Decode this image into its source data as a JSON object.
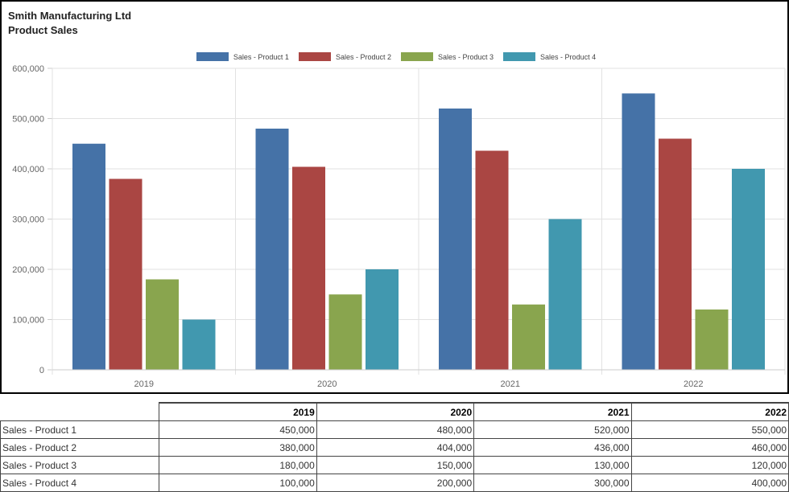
{
  "chart_data": {
    "type": "bar",
    "title": "Smith Manufacturing Ltd",
    "subtitle": "Product Sales",
    "categories": [
      "2019",
      "2020",
      "2021",
      "2022"
    ],
    "series": [
      {
        "name": "Sales - Product 1",
        "color": "#4572A7",
        "values": [
          450000,
          480000,
          520000,
          550000
        ]
      },
      {
        "name": "Sales - Product 2",
        "color": "#AA4643",
        "values": [
          380000,
          404000,
          436000,
          460000
        ]
      },
      {
        "name": "Sales - Product 3",
        "color": "#89A54E",
        "values": [
          180000,
          150000,
          130000,
          120000
        ]
      },
      {
        "name": "Sales - Product 4",
        "color": "#4198AF",
        "values": [
          100000,
          200000,
          300000,
          400000
        ]
      }
    ],
    "ylim": [
      0,
      600000
    ],
    "yticks": [
      "0",
      "100,000",
      "200,000",
      "300,000",
      "400,000",
      "500,000",
      "600,000"
    ],
    "grid": true,
    "legend": "top-center"
  },
  "table": {
    "headers": [
      "2019",
      "2020",
      "2021",
      "2022"
    ],
    "rows": [
      {
        "label": "Sales - Product 1",
        "cells": [
          "450,000",
          "480,000",
          "520,000",
          "550,000"
        ]
      },
      {
        "label": "Sales - Product 2",
        "cells": [
          "380,000",
          "404,000",
          "436,000",
          "460,000"
        ]
      },
      {
        "label": "Sales - Product 3",
        "cells": [
          "180,000",
          "150,000",
          "130,000",
          "120,000"
        ]
      },
      {
        "label": "Sales - Product 4",
        "cells": [
          "100,000",
          "200,000",
          "300,000",
          "400,000"
        ]
      }
    ]
  }
}
